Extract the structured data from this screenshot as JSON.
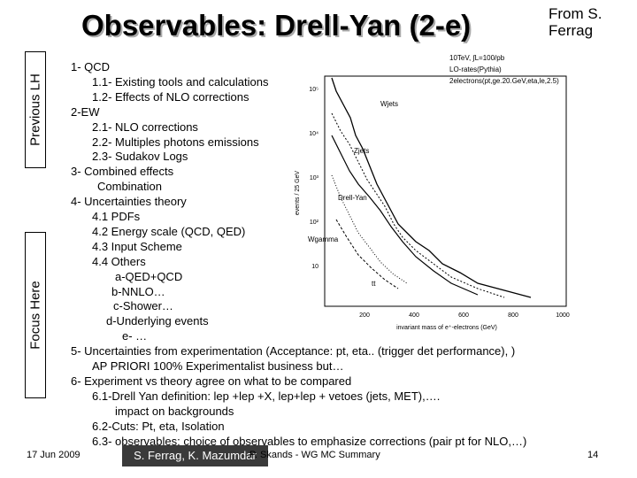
{
  "header": {
    "title": "Observables: Drell-Yan (2-e)",
    "credit": "From S. Ferrag"
  },
  "sidebar": {
    "top": "Previous LH",
    "bottom": "Focus Here"
  },
  "outline": [
    "1- QCD",
    "1.1- Existing tools and calculations",
    "1.2- Effects of NLO corrections",
    "2-EW",
    "2.1- NLO corrections",
    "2.2- Multiples photons emissions",
    "2.3- Sudakov Logs",
    "3- Combined effects",
    "Combination",
    "4- Uncertainties theory",
    "4.1 PDFs",
    "4.2 Energy scale (QCD, QED)",
    "4.3 Input Scheme",
    "4.4 Others",
    "a-QED+QCD",
    "b-NNLO…",
    "c-Shower…",
    "d-Underlying events",
    "e- …",
    "5- Uncertainties from experimentation (Acceptance: pt, eta.. (trigger det performance),  )",
    "AP PRIORI 100% Experimentalist business but…",
    "6- Experiment vs theory agree on what to be compared",
    "6.1-Drell Yan definition:  lep +lep +X, lep+lep + vetoes (jets, MET),….",
    "impact on backgrounds",
    "6.2-Cuts: Pt, eta, Isolation",
    "6.3- observables: choice of observables to emphasize corrections (pair pt for NLO,…)"
  ],
  "figure": {
    "legend": [
      "10TeV, ∫L=100/pb",
      "LO-rates(Pythia)",
      "2electrons(pt,ge.20.GeV,eta,le,2.5)"
    ],
    "curves": [
      "Wjets",
      "Zjets",
      "Drell-Yan",
      "Wgamma",
      "tt"
    ],
    "xticks": [
      "200",
      "400",
      "600",
      "800",
      "1000"
    ],
    "yticks": [
      "10⁵",
      "10⁴",
      "10³",
      "10²",
      "10"
    ],
    "xlabel": "invariant mass of e⁺-electrons (GeV)",
    "ylabel": "events / 25 GeV"
  },
  "footer": {
    "date": "17 Jun 2009",
    "authors": "S. Ferrag, K. Mazumdar",
    "talk": "P. Skands - WG MC Summary",
    "page": "14"
  }
}
